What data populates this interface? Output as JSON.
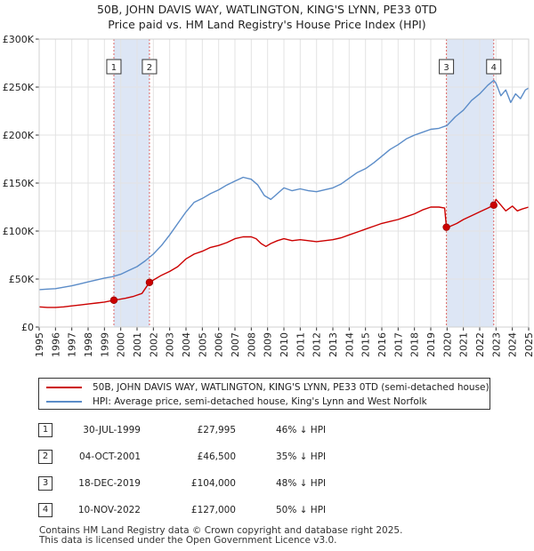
{
  "header": {
    "title_line1": "50B, JOHN DAVIS WAY, WATLINGTON, KING'S LYNN, PE33 0TD",
    "title_line2": "Price paid vs. HM Land Registry's House Price Index (HPI)"
  },
  "colors": {
    "property": "#cc0000",
    "hpi": "#5b8cc8",
    "shade": "#dde6f5",
    "marker": "#cc0000",
    "vline": "#dd6666"
  },
  "chart_data": {
    "type": "line",
    "title": "Price paid vs. HM Land Registry's House Price Index (HPI)",
    "xlabel": "",
    "ylabel": "",
    "xlim": [
      1995,
      2025
    ],
    "ylim": [
      0,
      300000
    ],
    "x_ticks": [
      "1995",
      "1996",
      "1997",
      "1998",
      "1999",
      "2000",
      "2001",
      "2002",
      "2003",
      "2004",
      "2005",
      "2006",
      "2007",
      "2008",
      "2009",
      "2010",
      "2011",
      "2012",
      "2013",
      "2014",
      "2015",
      "2016",
      "2017",
      "2018",
      "2019",
      "2020",
      "2021",
      "2022",
      "2023",
      "2024",
      "2025"
    ],
    "y_ticks": [
      {
        "value": 0,
        "label": "£0"
      },
      {
        "value": 50000,
        "label": "£50K"
      },
      {
        "value": 100000,
        "label": "£100K"
      },
      {
        "value": 150000,
        "label": "£150K"
      },
      {
        "value": 200000,
        "label": "£200K"
      },
      {
        "value": 250000,
        "label": "£250K"
      },
      {
        "value": 300000,
        "label": "£300K"
      }
    ],
    "grid": true,
    "series": [
      {
        "name": "50B, JOHN DAVIS WAY, WATLINGTON, KING'S LYNN, PE33 0TD (semi-detached house)",
        "color": "#cc0000",
        "x": [
          1995.0,
          1995.5,
          1996.0,
          1996.5,
          1997.0,
          1997.5,
          1998.0,
          1998.5,
          1999.0,
          1999.58,
          1999.8,
          2000.3,
          2000.8,
          2001.3,
          2001.76,
          2002.0,
          2002.5,
          2003.0,
          2003.5,
          2004.0,
          2004.5,
          2005.0,
          2005.5,
          2006.0,
          2006.5,
          2007.0,
          2007.5,
          2008.0,
          2008.3,
          2008.6,
          2008.9,
          2009.2,
          2009.6,
          2010.0,
          2010.5,
          2011.0,
          2011.5,
          2012.0,
          2012.5,
          2013.0,
          2013.5,
          2014.0,
          2014.5,
          2015.0,
          2015.5,
          2016.0,
          2016.5,
          2017.0,
          2017.5,
          2018.0,
          2018.5,
          2019.0,
          2019.5,
          2019.85,
          2019.96,
          2020.2,
          2020.6,
          2021.0,
          2021.5,
          2022.0,
          2022.5,
          2022.86,
          2023.0,
          2023.3,
          2023.6,
          2024.0,
          2024.3,
          2024.6,
          2025.0
        ],
        "values": [
          21000,
          20500,
          20500,
          21000,
          22000,
          23000,
          24000,
          25000,
          26000,
          27995,
          28500,
          30000,
          32000,
          35000,
          46500,
          49000,
          54000,
          58000,
          63000,
          71000,
          76000,
          79000,
          83000,
          85000,
          88000,
          92000,
          94000,
          94000,
          92000,
          87000,
          84000,
          87000,
          90000,
          92000,
          90000,
          91000,
          90000,
          89000,
          90000,
          91000,
          93000,
          96000,
          99000,
          102000,
          105000,
          108000,
          110000,
          112000,
          115000,
          118000,
          122000,
          125000,
          125000,
          124000,
          104000,
          105000,
          108000,
          112000,
          116000,
          120000,
          124000,
          127000,
          133000,
          127000,
          121000,
          126000,
          121000,
          123000,
          125000
        ]
      },
      {
        "name": "HPI: Average price, semi-detached house, King's Lynn and West Norfolk",
        "color": "#5b8cc8",
        "x": [
          1995.0,
          1995.5,
          1996.0,
          1996.5,
          1997.0,
          1997.5,
          1998.0,
          1998.5,
          1999.0,
          1999.5,
          2000.0,
          2000.5,
          2001.0,
          2001.5,
          2002.0,
          2002.5,
          2003.0,
          2003.5,
          2004.0,
          2004.5,
          2005.0,
          2005.5,
          2006.0,
          2006.5,
          2007.0,
          2007.5,
          2008.0,
          2008.4,
          2008.8,
          2009.2,
          2009.6,
          2010.0,
          2010.5,
          2011.0,
          2011.5,
          2012.0,
          2012.5,
          2013.0,
          2013.5,
          2014.0,
          2014.5,
          2015.0,
          2015.5,
          2016.0,
          2016.5,
          2017.0,
          2017.5,
          2018.0,
          2018.5,
          2019.0,
          2019.5,
          2020.0,
          2020.5,
          2021.0,
          2021.5,
          2022.0,
          2022.5,
          2022.86,
          2023.0,
          2023.3,
          2023.6,
          2023.9,
          2024.2,
          2024.5,
          2024.8,
          2025.0
        ],
        "values": [
          39000,
          39500,
          40000,
          41500,
          43000,
          45000,
          47000,
          49000,
          51000,
          52500,
          55000,
          59000,
          63000,
          69000,
          76000,
          85000,
          96000,
          108000,
          120000,
          130000,
          134000,
          139000,
          143000,
          148000,
          152000,
          156000,
          154000,
          148000,
          137000,
          133000,
          139000,
          145000,
          142000,
          144000,
          142000,
          141000,
          143000,
          145000,
          149000,
          155000,
          161000,
          165000,
          171000,
          178000,
          185000,
          190000,
          196000,
          200000,
          203000,
          206000,
          207000,
          210000,
          219000,
          226000,
          236000,
          243000,
          252000,
          257000,
          254000,
          241000,
          247000,
          234000,
          243000,
          238000,
          247000,
          249000
        ]
      }
    ],
    "sales": [
      {
        "id": "1",
        "x": 1999.58,
        "value": 27995
      },
      {
        "id": "2",
        "x": 2001.76,
        "value": 46500
      },
      {
        "id": "3",
        "x": 2019.96,
        "value": 104000
      },
      {
        "id": "4",
        "x": 2022.86,
        "value": 127000
      }
    ],
    "shaded_spans": [
      [
        1999.58,
        2001.76
      ],
      [
        2019.96,
        2022.86
      ]
    ]
  },
  "legend": {
    "property_label": "50B, JOHN DAVIS WAY, WATLINGTON, KING'S LYNN, PE33 0TD (semi-detached house)",
    "hpi_label": "HPI: Average price, semi-detached house, King's Lynn and West Norfolk"
  },
  "sales_table": [
    {
      "num": "1",
      "date": "30-JUL-1999",
      "price": "£27,995",
      "hpi": "46% ↓ HPI"
    },
    {
      "num": "2",
      "date": "04-OCT-2001",
      "price": "£46,500",
      "hpi": "35% ↓ HPI"
    },
    {
      "num": "3",
      "date": "18-DEC-2019",
      "price": "£104,000",
      "hpi": "48% ↓ HPI"
    },
    {
      "num": "4",
      "date": "10-NOV-2022",
      "price": "£127,000",
      "hpi": "50% ↓ HPI"
    }
  ],
  "footer": {
    "line1": "Contains HM Land Registry data © Crown copyright and database right 2025.",
    "line2": "This data is licensed under the Open Government Licence v3.0."
  }
}
